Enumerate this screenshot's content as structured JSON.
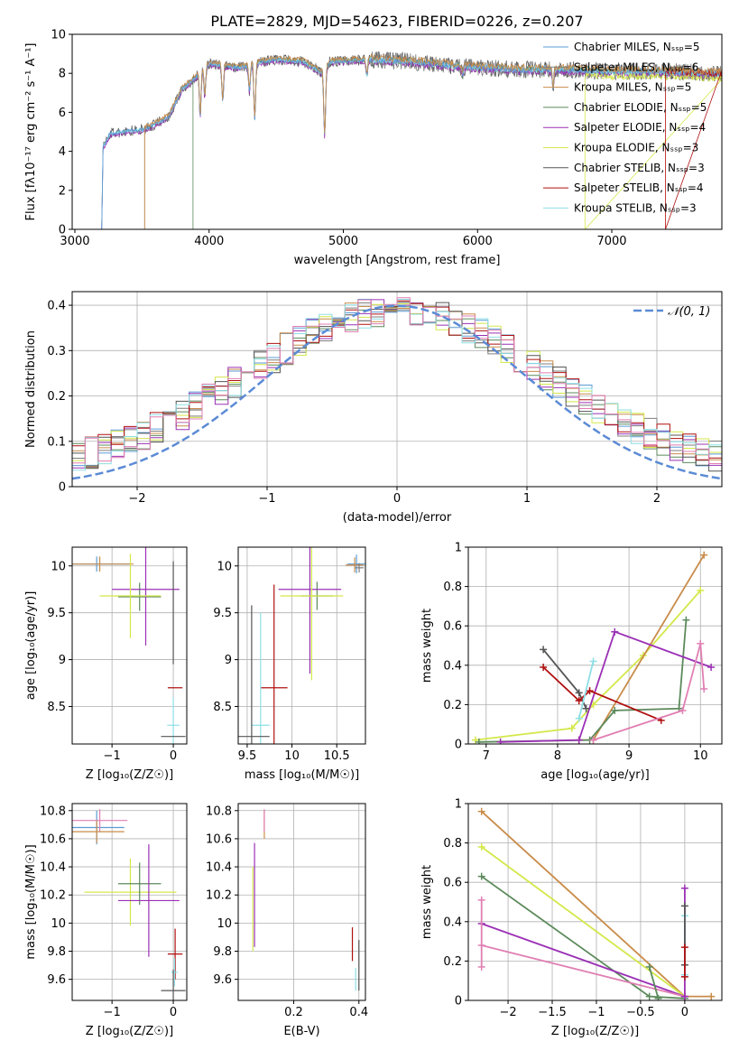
{
  "page": {
    "title": "PLATE=2829, MJD=54623, FIBERID=0226, z=0.207"
  },
  "colors": {
    "models": [
      "#5b9bd5",
      "#7f7f7f",
      "#c98c4a",
      "#5c8a5c",
      "#9b30b5",
      "#d4e84a",
      "#555555",
      "#b01010",
      "#8edfe6"
    ],
    "extra": {
      "pink": "#e07fb3",
      "orange": "#d8843a",
      "gaussian": "#5b8bd5"
    }
  },
  "chart_data": [
    {
      "id": "spectrum",
      "type": "line",
      "xlabel": "wavelength [Angstrom, rest frame]",
      "ylabel": "Flux [fλ10⁻¹⁷ erg cm⁻² s⁻¹ A⁻¹]",
      "xlim": [
        2980,
        7820
      ],
      "ylim": [
        0,
        10
      ],
      "xticks": [
        3000,
        4000,
        5000,
        6000,
        7000
      ],
      "yticks": [
        0,
        2,
        4,
        6,
        8,
        10
      ],
      "legend": [
        "Chabrier MILES, Nₛₛₚ=5",
        "Salpeter MILES, Nₛₛₚ=6",
        "Kroupa MILES, Nₛₛₚ=5",
        "Chabrier ELODIE, Nₛₛₚ=5",
        "Salpeter ELODIE, Nₛₛₚ=4",
        "Kroupa ELODIE, Nₛₛₚ=3",
        "Chabrier STELIB, Nₛₛₚ=3",
        "Salpeter STELIB, Nₛₛₚ=4",
        "Kroupa STELIB, Nₛₛₚ=3"
      ],
      "legend_loc": "upper right",
      "profile": [
        [
          3200,
          0
        ],
        [
          3210,
          4.2
        ],
        [
          3260,
          4.9
        ],
        [
          3350,
          5.0
        ],
        [
          3500,
          5.1
        ],
        [
          3600,
          5.4
        ],
        [
          3700,
          5.8
        ],
        [
          3800,
          7.2
        ],
        [
          3900,
          7.8
        ],
        [
          3950,
          8.2
        ],
        [
          4000,
          8.5
        ],
        [
          4100,
          8.4
        ],
        [
          4200,
          8.3
        ],
        [
          4300,
          8.4
        ],
        [
          4400,
          8.6
        ],
        [
          4500,
          8.7
        ],
        [
          4700,
          8.6
        ],
        [
          4850,
          8.0
        ],
        [
          4900,
          8.6
        ],
        [
          5200,
          8.7
        ],
        [
          5500,
          8.6
        ],
        [
          5800,
          8.4
        ],
        [
          6000,
          8.3
        ],
        [
          6300,
          8.2
        ],
        [
          6600,
          8.2
        ],
        [
          7000,
          8.1
        ],
        [
          7400,
          8.1
        ],
        [
          7800,
          8.0
        ]
      ],
      "dips": [
        [
          3934,
          2.2
        ],
        [
          3968,
          1.5
        ],
        [
          4101,
          1.8
        ],
        [
          4300,
          1.3
        ],
        [
          4340,
          2.8
        ],
        [
          4861,
          3.4
        ],
        [
          5175,
          0.8
        ],
        [
          5890,
          0.5
        ],
        [
          6563,
          0.9
        ]
      ],
      "cutoffs": [
        3200,
        3520,
        3520,
        3880,
        3200,
        6800,
        3200,
        7400,
        3200
      ]
    },
    {
      "id": "residuals",
      "type": "histogram",
      "xlabel": "(data-model)/error",
      "ylabel": "Normed distribution",
      "xlim": [
        -2.5,
        2.5
      ],
      "ylim": [
        0,
        0.43
      ],
      "xticks": [
        -2,
        -1,
        0,
        1,
        2
      ],
      "yticks": [
        0,
        0.1,
        0.2,
        0.3,
        0.4
      ],
      "bin_width": 0.1,
      "legend": [
        "𝒩(0, 1)"
      ],
      "legend_loc": "upper right",
      "curve": {
        "type": "normal",
        "mean": 0,
        "std": 1
      }
    },
    {
      "id": "age-vs-Z",
      "type": "errorbar",
      "xlabel": "Z [log₁₀(Z/Z☉)]",
      "ylabel": "age  [log₁₀(age/yr)]",
      "xlim": [
        -1.65,
        0.22
      ],
      "ylim": [
        8.1,
        10.2
      ],
      "xticks": [
        -1,
        0
      ],
      "yticks": [
        8.5,
        9.0,
        9.5,
        10.0
      ],
      "points": [
        {
          "x": -1.25,
          "y": 10.02,
          "xerr": 0.55,
          "yerr": 0.08,
          "c": 0
        },
        {
          "x": -1.2,
          "y": 10.02,
          "xerr": 0.55,
          "yerr": 0.08,
          "c": 2
        },
        {
          "x": -0.55,
          "y": 9.67,
          "xerr": 0.35,
          "yerr": 0.15,
          "c": 3
        },
        {
          "x": -0.45,
          "y": 9.75,
          "xerr": 0.55,
          "yerr": 0.6,
          "c": 4
        },
        {
          "x": -0.7,
          "y": 9.68,
          "xerr": 0.5,
          "yerr": 0.45,
          "c": 5
        },
        {
          "x": 0.03,
          "y": 8.7,
          "xerr": 0.12,
          "yerr": 0.0,
          "c": 7
        },
        {
          "x": 0.0,
          "y": 8.3,
          "xerr": 0.1,
          "yerr": 0.3,
          "c": 8
        },
        {
          "x": 0.0,
          "y": 8.18,
          "xerr": 0.2,
          "yerr": 0.0,
          "c": 6
        },
        {
          "x": 0.0,
          "y": 9.5,
          "xerr": 0.0,
          "yerr": 0.55,
          "c": 6
        }
      ]
    },
    {
      "id": "age-vs-mass",
      "type": "errorbar",
      "xlabel": "mass [log₁₀(M/M☉)]",
      "ylabel": "",
      "xlim": [
        9.4,
        10.82
      ],
      "ylim": [
        8.1,
        10.2
      ],
      "xticks": [
        9.5,
        10.0,
        10.5
      ],
      "yticks": [
        8.5,
        9.0,
        9.5,
        10.0
      ],
      "points": [
        {
          "x": 10.72,
          "y": 10.02,
          "xerr": 0.1,
          "yerr": 0.1,
          "c": 0
        },
        {
          "x": 10.7,
          "y": 10.01,
          "xerr": 0.1,
          "yerr": 0.08,
          "c": 2
        },
        {
          "x": 10.75,
          "y": 9.98,
          "xerr": 0.05,
          "yerr": 0.05,
          "c": 1
        },
        {
          "x": 10.28,
          "y": 9.68,
          "xerr": 0.18,
          "yerr": 0.15,
          "c": 3
        },
        {
          "x": 10.2,
          "y": 9.75,
          "xerr": 0.35,
          "yerr": 0.9,
          "c": 4
        },
        {
          "x": 10.22,
          "y": 9.68,
          "xerr": 0.35,
          "yerr": 0.9,
          "c": 5
        },
        {
          "x": 9.8,
          "y": 8.7,
          "xerr": 0.15,
          "yerr": 1.1,
          "c": 7
        },
        {
          "x": 9.65,
          "y": 8.3,
          "xerr": 0.1,
          "yerr": 1.2,
          "c": 8
        },
        {
          "x": 9.55,
          "y": 8.18,
          "xerr": 0.2,
          "yerr": 1.4,
          "c": 6
        }
      ]
    },
    {
      "id": "weight-vs-age",
      "type": "line",
      "xlabel": "age  [log₁₀(age/yr)]",
      "ylabel": "mass weight",
      "xlim": [
        6.75,
        10.3
      ],
      "ylim": [
        0,
        1.0
      ],
      "xticks": [
        7,
        8,
        9,
        10
      ],
      "yticks": [
        0.0,
        0.2,
        0.4,
        0.6,
        0.8,
        1.0
      ],
      "series": [
        {
          "c": 5,
          "pts": [
            [
              6.85,
              0.02
            ],
            [
              8.2,
              0.08
            ],
            [
              8.5,
              0.2
            ],
            [
              9.2,
              0.45
            ],
            [
              10.0,
              0.78
            ]
          ]
        },
        {
          "c": 2,
          "pts": [
            [
              8.3,
              0.02
            ],
            [
              8.5,
              0.02
            ],
            [
              10.05,
              0.96
            ]
          ]
        },
        {
          "c": 3,
          "pts": [
            [
              6.9,
              0.01
            ],
            [
              8.45,
              0.02
            ],
            [
              8.8,
              0.17
            ],
            [
              9.7,
              0.18
            ],
            [
              9.8,
              0.63
            ]
          ]
        },
        {
          "c": 4,
          "pts": [
            [
              7.2,
              0.01
            ],
            [
              8.3,
              0.02
            ],
            [
              8.8,
              0.57
            ],
            [
              10.15,
              0.39
            ]
          ]
        },
        {
          "c": 6,
          "pts": [
            [
              7.8,
              0.48
            ],
            [
              8.3,
              0.26
            ],
            [
              8.4,
              0.18
            ]
          ]
        },
        {
          "c": 7,
          "pts": [
            [
              7.8,
              0.39
            ],
            [
              8.3,
              0.22
            ],
            [
              8.45,
              0.27
            ],
            [
              9.45,
              0.12
            ]
          ]
        },
        {
          "c": 8,
          "pts": [
            [
              8.3,
              0.13
            ],
            [
              8.5,
              0.42
            ]
          ]
        },
        {
          "c": "pink",
          "pts": [
            [
              8.5,
              0.02
            ],
            [
              9.75,
              0.17
            ],
            [
              10.0,
              0.51
            ],
            [
              10.05,
              0.28
            ]
          ]
        }
      ]
    },
    {
      "id": "mass-vs-Z",
      "type": "errorbar",
      "xlabel": "Z [log₁₀(Z/Z☉)]",
      "ylabel": "mass [log₁₀(M/M☉)]",
      "xlim": [
        -1.65,
        0.22
      ],
      "ylim": [
        9.45,
        10.85
      ],
      "xticks": [
        -1,
        0
      ],
      "yticks": [
        9.6,
        9.8,
        10.0,
        10.2,
        10.4,
        10.6,
        10.8
      ],
      "points": [
        {
          "x": -1.25,
          "y": 10.68,
          "xerr": 0.45,
          "yerr": 0.12,
          "c": 0
        },
        {
          "x": -1.2,
          "y": 10.73,
          "xerr": 0.45,
          "yerr": 0.08,
          "c": "pink"
        },
        {
          "x": -1.25,
          "y": 10.65,
          "xerr": 0.45,
          "yerr": 0.08,
          "c": 2
        },
        {
          "x": -0.7,
          "y": 10.22,
          "xerr": 0.75,
          "yerr": 0.24,
          "c": 5
        },
        {
          "x": -0.55,
          "y": 10.28,
          "xerr": 0.35,
          "yerr": 0.15,
          "c": 3
        },
        {
          "x": -0.4,
          "y": 10.16,
          "xerr": 0.5,
          "yerr": 0.4,
          "c": 4
        },
        {
          "x": 0.03,
          "y": 9.78,
          "xerr": 0.12,
          "yerr": 0.18,
          "c": 7
        },
        {
          "x": 0.02,
          "y": 9.65,
          "xerr": 0.05,
          "yerr": 0.1,
          "c": 8
        },
        {
          "x": 0.0,
          "y": 9.52,
          "xerr": 0.2,
          "yerr": 0.15,
          "c": 6
        }
      ]
    },
    {
      "id": "mass-vs-EBV",
      "type": "errorbar",
      "xlabel": "E(B-V)",
      "ylabel": "",
      "xlim": [
        0.03,
        0.42
      ],
      "ylim": [
        9.45,
        10.85
      ],
      "xticks": [
        0.2,
        0.4
      ],
      "yticks": [
        9.6,
        9.8,
        10.0,
        10.2,
        10.4,
        10.6,
        10.8
      ],
      "points": [
        {
          "x": 0.11,
          "y": 10.7,
          "xerr": 0.0,
          "yerr": 0.1,
          "c": 2
        },
        {
          "x": 0.11,
          "y": 10.73,
          "xerr": 0.0,
          "yerr": 0.08,
          "c": "pink"
        },
        {
          "x": 0.08,
          "y": 10.2,
          "xerr": 0.0,
          "yerr": 0.37,
          "c": 4
        },
        {
          "x": 0.075,
          "y": 10.1,
          "xerr": 0.0,
          "yerr": 0.3,
          "c": 5
        },
        {
          "x": 0.38,
          "y": 9.85,
          "xerr": 0.0,
          "yerr": 0.12,
          "c": 7
        },
        {
          "x": 0.4,
          "y": 9.7,
          "xerr": 0.0,
          "yerr": 0.18,
          "c": 6
        },
        {
          "x": 0.39,
          "y": 9.6,
          "xerr": 0.0,
          "yerr": 0.08,
          "c": 8
        }
      ]
    },
    {
      "id": "weight-vs-Z",
      "type": "line",
      "xlabel": "Z [log₁₀(Z/Z☉)]",
      "ylabel": "mass weight",
      "xlim": [
        -2.45,
        0.42
      ],
      "ylim": [
        0,
        1.0
      ],
      "xticks": [
        -2.0,
        -1.5,
        -1.0,
        -0.5,
        0.0
      ],
      "yticks": [
        0.0,
        0.2,
        0.4,
        0.6,
        0.8,
        1.0
      ],
      "series": [
        {
          "c": 2,
          "pts": [
            [
              -2.3,
              0.96
            ],
            [
              0.0,
              0.02
            ],
            [
              0.3,
              0.02
            ]
          ]
        },
        {
          "c": 5,
          "pts": [
            [
              -2.3,
              0.78
            ],
            [
              0.0,
              0.02
            ]
          ]
        },
        {
          "c": 3,
          "pts": [
            [
              -2.3,
              0.63
            ],
            [
              -0.4,
              0.02
            ],
            [
              0.0,
              0.01
            ]
          ]
        },
        {
          "c": 4,
          "pts": [
            [
              -2.3,
              0.39
            ],
            [
              0.0,
              0.02
            ]
          ]
        },
        {
          "c": "pink",
          "pts": [
            [
              -2.3,
              0.28
            ],
            [
              0.0,
              0.02
            ]
          ]
        },
        {
          "c": 3,
          "pts": [
            [
              -0.4,
              0.17
            ],
            [
              -0.3,
              0.01
            ]
          ]
        },
        {
          "c": 4,
          "pts": [
            [
              0.0,
              0.57
            ],
            [
              0.0,
              0.02
            ]
          ]
        },
        {
          "c": 8,
          "pts": [
            [
              0.0,
              0.43
            ],
            [
              0.0,
              0.13
            ]
          ]
        },
        {
          "c": 6,
          "pts": [
            [
              0.0,
              0.48
            ],
            [
              0.0,
              0.18
            ]
          ]
        },
        {
          "c": 7,
          "pts": [
            [
              0.0,
              0.27
            ],
            [
              0.0,
              0.12
            ]
          ]
        },
        {
          "c": "pink",
          "pts": [
            [
              -2.3,
              0.51
            ],
            [
              -2.3,
              0.17
            ]
          ]
        }
      ]
    }
  ]
}
